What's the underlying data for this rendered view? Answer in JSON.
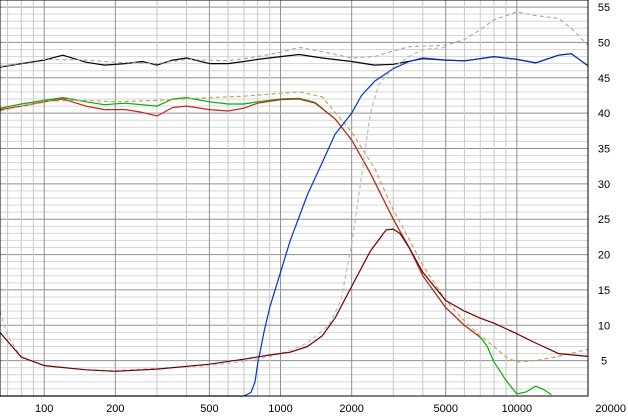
{
  "chart_data": {
    "type": "line",
    "title": "",
    "xlabel": "",
    "ylabel": "",
    "x_scale": "log",
    "xlim": [
      65,
      20000
    ],
    "ylim": [
      0,
      56
    ],
    "grid": true,
    "legend": "none",
    "x_ticks": [
      {
        "value": 100,
        "label": "100"
      },
      {
        "value": 200,
        "label": "200"
      },
      {
        "value": 500,
        "label": "500"
      },
      {
        "value": 1000,
        "label": "1000"
      },
      {
        "value": 2000,
        "label": "2000"
      },
      {
        "value": 5000,
        "label": "5000"
      },
      {
        "value": 10000,
        "label": "10000"
      },
      {
        "value": 20000,
        "label": "20000"
      }
    ],
    "y_ticks": [
      {
        "value": 5,
        "label": "5"
      },
      {
        "value": 10,
        "label": "10"
      },
      {
        "value": 15,
        "label": "15"
      },
      {
        "value": 20,
        "label": "20"
      },
      {
        "value": 25,
        "label": "25"
      },
      {
        "value": 30,
        "label": "30"
      },
      {
        "value": 35,
        "label": "35"
      },
      {
        "value": 40,
        "label": "40"
      },
      {
        "value": 45,
        "label": "45"
      },
      {
        "value": 50,
        "label": "50"
      },
      {
        "value": 55,
        "label": "55"
      }
    ],
    "series": [
      {
        "color": "#000000",
        "dashed": false,
        "points": [
          [
            65,
            46.5
          ],
          [
            80,
            47.0
          ],
          [
            100,
            47.5
          ],
          [
            120,
            48.2
          ],
          [
            150,
            47.2
          ],
          [
            180,
            46.8
          ],
          [
            220,
            47.0
          ],
          [
            260,
            47.3
          ],
          [
            300,
            46.8
          ],
          [
            350,
            47.5
          ],
          [
            400,
            47.8
          ],
          [
            500,
            47.0
          ],
          [
            600,
            47.0
          ],
          [
            700,
            47.3
          ],
          [
            800,
            47.6
          ],
          [
            1000,
            48.0
          ],
          [
            1200,
            48.3
          ],
          [
            1500,
            47.8
          ],
          [
            2000,
            47.3
          ],
          [
            2500,
            46.8
          ],
          [
            3000,
            46.9
          ],
          [
            4000,
            47.7
          ],
          [
            5000,
            47.5
          ],
          [
            6000,
            47.4
          ],
          [
            7000,
            47.7
          ],
          [
            8000,
            48.0
          ],
          [
            10000,
            47.6
          ],
          [
            12000,
            47.1
          ],
          [
            15000,
            48.2
          ],
          [
            17000,
            48.4
          ],
          [
            20000,
            46.7
          ]
        ]
      },
      {
        "color": "#aaaaaa",
        "dashed": true,
        "points": [
          [
            65,
            46.6
          ],
          [
            100,
            47.6
          ],
          [
            150,
            47.5
          ],
          [
            200,
            47.2
          ],
          [
            300,
            47.0
          ],
          [
            400,
            47.6
          ],
          [
            600,
            47.4
          ],
          [
            800,
            48.0
          ],
          [
            1000,
            48.6
          ],
          [
            1200,
            49.3
          ],
          [
            1500,
            48.7
          ],
          [
            2000,
            47.8
          ],
          [
            2500,
            48.0
          ],
          [
            3000,
            48.8
          ],
          [
            3500,
            49.4
          ],
          [
            5000,
            49.6
          ],
          [
            6000,
            50.4
          ],
          [
            7000,
            51.8
          ],
          [
            8000,
            53.2
          ],
          [
            10000,
            54.3
          ],
          [
            12000,
            53.8
          ],
          [
            15000,
            53.4
          ],
          [
            17000,
            52.0
          ],
          [
            20000,
            49.6
          ]
        ]
      },
      {
        "color": "#00b000",
        "dashed": false,
        "points": [
          [
            65,
            40.7
          ],
          [
            80,
            41.3
          ],
          [
            100,
            41.8
          ],
          [
            120,
            42.2
          ],
          [
            150,
            41.6
          ],
          [
            180,
            41.2
          ],
          [
            220,
            41.4
          ],
          [
            260,
            41.2
          ],
          [
            300,
            41.0
          ],
          [
            350,
            42.0
          ],
          [
            400,
            42.2
          ],
          [
            500,
            41.6
          ],
          [
            600,
            41.3
          ],
          [
            700,
            41.3
          ],
          [
            800,
            41.6
          ],
          [
            1000,
            42.0
          ],
          [
            1200,
            42.1
          ],
          [
            1400,
            41.5
          ],
          [
            1700,
            39.2
          ],
          [
            2000,
            36.2
          ],
          [
            2400,
            31.5
          ],
          [
            3000,
            25.0
          ],
          [
            3500,
            21.0
          ],
          [
            4000,
            17.0
          ],
          [
            5000,
            12.5
          ],
          [
            6000,
            10.0
          ],
          [
            7000,
            8.3
          ],
          [
            7500,
            7.0
          ],
          [
            8000,
            4.8
          ],
          [
            8500,
            3.5
          ],
          [
            9000,
            2.2
          ],
          [
            9500,
            1.2
          ],
          [
            10000,
            0.3
          ],
          [
            11000,
            0.6
          ],
          [
            12000,
            1.4
          ],
          [
            13000,
            0.9
          ],
          [
            14000,
            0.2
          ]
        ]
      },
      {
        "color": "#cc2222",
        "dashed": false,
        "points": [
          [
            65,
            40.5
          ],
          [
            80,
            41.0
          ],
          [
            100,
            41.6
          ],
          [
            120,
            42.0
          ],
          [
            150,
            41.0
          ],
          [
            180,
            40.5
          ],
          [
            220,
            40.5
          ],
          [
            260,
            40.1
          ],
          [
            300,
            39.6
          ],
          [
            350,
            40.8
          ],
          [
            400,
            41.0
          ],
          [
            500,
            40.5
          ],
          [
            600,
            40.3
          ],
          [
            700,
            40.7
          ],
          [
            800,
            41.4
          ],
          [
            1000,
            41.9
          ],
          [
            1200,
            42.0
          ],
          [
            1400,
            41.4
          ],
          [
            1700,
            39.2
          ],
          [
            2000,
            36.2
          ],
          [
            2400,
            31.5
          ],
          [
            3000,
            25.0
          ],
          [
            3500,
            21.0
          ],
          [
            4000,
            17.0
          ],
          [
            5000,
            12.5
          ],
          [
            6000,
            10.0
          ],
          [
            7000,
            8.3
          ]
        ]
      },
      {
        "color": "#c8a060",
        "dashed": true,
        "points": [
          [
            65,
            40.3
          ],
          [
            100,
            41.7
          ],
          [
            150,
            41.8
          ],
          [
            200,
            41.6
          ],
          [
            300,
            41.8
          ],
          [
            500,
            42.2
          ],
          [
            700,
            42.4
          ],
          [
            1000,
            42.8
          ],
          [
            1200,
            43.0
          ],
          [
            1500,
            42.3
          ],
          [
            2000,
            37.3
          ],
          [
            2500,
            32.2
          ],
          [
            3000,
            26.3
          ],
          [
            3500,
            22.2
          ],
          [
            4000,
            18.5
          ],
          [
            5000,
            13.5
          ],
          [
            6000,
            10.6
          ],
          [
            7000,
            8.5
          ],
          [
            8000,
            7.0
          ],
          [
            9000,
            5.5
          ],
          [
            10000,
            4.8
          ],
          [
            12000,
            5.0
          ],
          [
            15000,
            5.6
          ],
          [
            20000,
            6.6
          ]
        ]
      },
      {
        "color": "#0033cc",
        "dashed": false,
        "points": [
          [
            65,
            0
          ],
          [
            700,
            0
          ],
          [
            750,
            0.5
          ],
          [
            780,
            2.0
          ],
          [
            800,
            4.5
          ],
          [
            850,
            9.0
          ],
          [
            900,
            12.5
          ],
          [
            1000,
            17.5
          ],
          [
            1100,
            22.0
          ],
          [
            1300,
            28.5
          ],
          [
            1500,
            33.0
          ],
          [
            1700,
            37.0
          ],
          [
            2000,
            40.0
          ],
          [
            2200,
            42.5
          ],
          [
            2500,
            44.5
          ],
          [
            3000,
            46.3
          ],
          [
            3500,
            47.3
          ],
          [
            4000,
            47.8
          ],
          [
            5000,
            47.5
          ],
          [
            6000,
            47.4
          ],
          [
            7000,
            47.7
          ],
          [
            8000,
            48.0
          ],
          [
            10000,
            47.6
          ],
          [
            12000,
            47.1
          ],
          [
            15000,
            48.2
          ],
          [
            17000,
            48.4
          ],
          [
            20000,
            46.7
          ]
        ]
      },
      {
        "color": "#bbbbbb",
        "dashed": true,
        "points": [
          [
            65,
            12.0
          ],
          [
            70,
            8.5
          ],
          [
            80,
            5.5
          ],
          [
            100,
            4.3
          ],
          [
            150,
            3.7
          ],
          [
            200,
            3.6
          ],
          [
            300,
            3.9
          ],
          [
            500,
            4.3
          ],
          [
            700,
            4.9
          ],
          [
            900,
            5.6
          ],
          [
            1100,
            6.4
          ],
          [
            1300,
            7.5
          ],
          [
            1600,
            10.0
          ],
          [
            1800,
            13.5
          ],
          [
            2000,
            21.5
          ],
          [
            2200,
            31.0
          ],
          [
            2400,
            40.0
          ],
          [
            2600,
            44.0
          ],
          [
            3000,
            46.5
          ],
          [
            3500,
            48.0
          ],
          [
            4000,
            49.0
          ],
          [
            5000,
            49.3
          ]
        ]
      },
      {
        "color": "#700000",
        "dashed": false,
        "points": [
          [
            65,
            9.0
          ],
          [
            80,
            5.5
          ],
          [
            100,
            4.3
          ],
          [
            150,
            3.7
          ],
          [
            200,
            3.5
          ],
          [
            300,
            3.8
          ],
          [
            500,
            4.5
          ],
          [
            700,
            5.2
          ],
          [
            900,
            5.8
          ],
          [
            1100,
            6.2
          ],
          [
            1300,
            7.0
          ],
          [
            1500,
            8.5
          ],
          [
            1700,
            11.0
          ],
          [
            2000,
            15.5
          ],
          [
            2400,
            20.5
          ],
          [
            2800,
            23.5
          ],
          [
            3000,
            23.6
          ],
          [
            3200,
            23.0
          ],
          [
            3500,
            21.0
          ],
          [
            4000,
            17.5
          ],
          [
            5000,
            13.5
          ],
          [
            6000,
            12.0
          ],
          [
            7000,
            11.0
          ],
          [
            8000,
            10.3
          ],
          [
            10000,
            8.8
          ],
          [
            12000,
            7.5
          ],
          [
            15000,
            6.0
          ],
          [
            20000,
            5.6
          ]
        ]
      }
    ]
  }
}
